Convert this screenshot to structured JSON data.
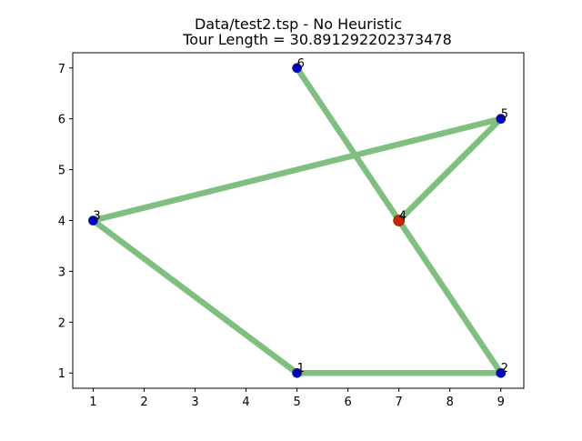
{
  "chart_data": {
    "type": "line",
    "title_line1": "Data/test2.tsp - No Heuristic",
    "title_line2": "Tour Length = 30.891292202373478",
    "xlabel": "",
    "ylabel": "",
    "xlim": [
      0.6,
      9.45
    ],
    "ylim": [
      0.7,
      7.3
    ],
    "x_ticks": [
      1,
      2,
      3,
      4,
      5,
      6,
      7,
      8,
      9
    ],
    "y_ticks": [
      1,
      2,
      3,
      4,
      5,
      6,
      7
    ],
    "grid": false,
    "tour_color": "#7fbf7f",
    "node_color": "#0000cc",
    "start_node_color": "#cc2200",
    "nodes": [
      {
        "id": "1",
        "x": 5,
        "y": 1
      },
      {
        "id": "2",
        "x": 9,
        "y": 1
      },
      {
        "id": "3",
        "x": 1,
        "y": 4
      },
      {
        "id": "4",
        "x": 7,
        "y": 4
      },
      {
        "id": "5",
        "x": 9,
        "y": 6
      },
      {
        "id": "6",
        "x": 5,
        "y": 7
      }
    ],
    "start_node": "4",
    "tour": [
      "4",
      "5",
      "3",
      "1",
      "2",
      "4",
      "6"
    ]
  }
}
